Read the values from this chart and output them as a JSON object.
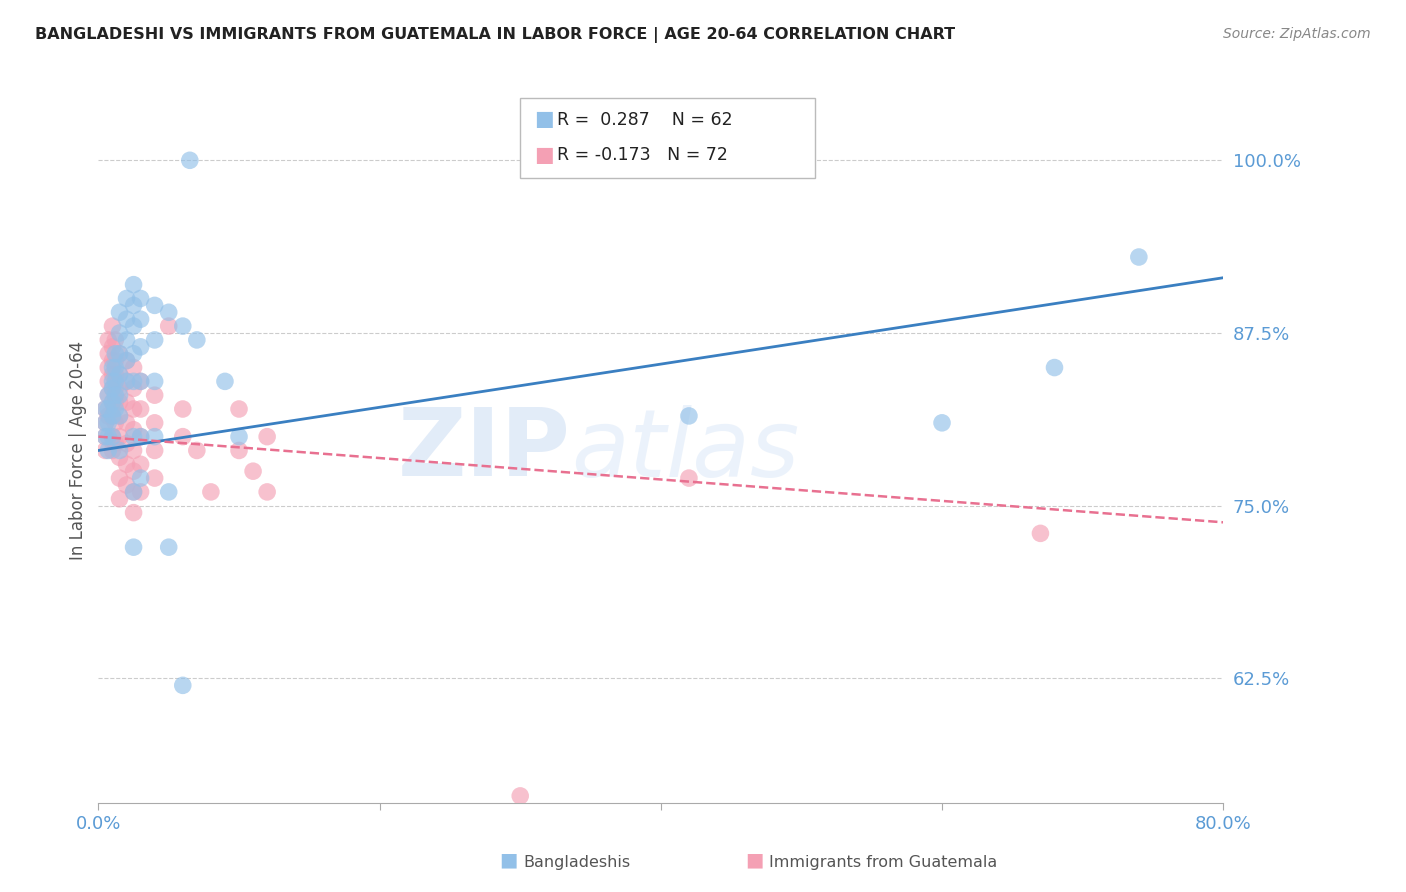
{
  "title": "BANGLADESHI VS IMMIGRANTS FROM GUATEMALA IN LABOR FORCE | AGE 20-64 CORRELATION CHART",
  "source": "Source: ZipAtlas.com",
  "ylabel": "In Labor Force | Age 20-64",
  "legend_label1": "Bangladeshis",
  "legend_label2": "Immigrants from Guatemala",
  "R1": 0.287,
  "N1": 62,
  "R2": -0.173,
  "N2": 72,
  "xlim": [
    0.0,
    0.8
  ],
  "ylim": [
    0.535,
    1.045
  ],
  "yticks": [
    0.625,
    0.75,
    0.875,
    1.0
  ],
  "ytick_labels": [
    "62.5%",
    "75.0%",
    "87.5%",
    "100.0%"
  ],
  "xticks": [
    0.0,
    0.2,
    0.4,
    0.6,
    0.8
  ],
  "xtick_labels": [
    "0.0%",
    "",
    "",
    "",
    "80.0%"
  ],
  "color_blue": "#92C0E8",
  "color_pink": "#F4A0B4",
  "line_color_blue": "#3A7FC1",
  "line_color_pink": "#E87090",
  "watermark_zip": "ZIP",
  "watermark_atlas": "atlas",
  "title_color": "#222222",
  "axis_label_color": "#555555",
  "tick_color": "#5B9BD5",
  "background_color": "#FFFFFF",
  "blue_scatter": [
    [
      0.005,
      0.82
    ],
    [
      0.005,
      0.81
    ],
    [
      0.005,
      0.8
    ],
    [
      0.007,
      0.83
    ],
    [
      0.007,
      0.82
    ],
    [
      0.007,
      0.81
    ],
    [
      0.007,
      0.8
    ],
    [
      0.007,
      0.79
    ],
    [
      0.01,
      0.85
    ],
    [
      0.01,
      0.84
    ],
    [
      0.01,
      0.835
    ],
    [
      0.01,
      0.825
    ],
    [
      0.01,
      0.815
    ],
    [
      0.01,
      0.8
    ],
    [
      0.012,
      0.86
    ],
    [
      0.012,
      0.85
    ],
    [
      0.012,
      0.84
    ],
    [
      0.012,
      0.83
    ],
    [
      0.012,
      0.82
    ],
    [
      0.015,
      0.89
    ],
    [
      0.015,
      0.875
    ],
    [
      0.015,
      0.86
    ],
    [
      0.015,
      0.845
    ],
    [
      0.015,
      0.83
    ],
    [
      0.015,
      0.815
    ],
    [
      0.015,
      0.79
    ],
    [
      0.02,
      0.9
    ],
    [
      0.02,
      0.885
    ],
    [
      0.02,
      0.87
    ],
    [
      0.02,
      0.855
    ],
    [
      0.02,
      0.84
    ],
    [
      0.025,
      0.91
    ],
    [
      0.025,
      0.895
    ],
    [
      0.025,
      0.88
    ],
    [
      0.025,
      0.86
    ],
    [
      0.025,
      0.84
    ],
    [
      0.025,
      0.8
    ],
    [
      0.025,
      0.76
    ],
    [
      0.025,
      0.72
    ],
    [
      0.03,
      0.9
    ],
    [
      0.03,
      0.885
    ],
    [
      0.03,
      0.865
    ],
    [
      0.03,
      0.84
    ],
    [
      0.03,
      0.8
    ],
    [
      0.03,
      0.77
    ],
    [
      0.04,
      0.895
    ],
    [
      0.04,
      0.87
    ],
    [
      0.04,
      0.84
    ],
    [
      0.04,
      0.8
    ],
    [
      0.05,
      0.89
    ],
    [
      0.06,
      0.88
    ],
    [
      0.07,
      0.87
    ],
    [
      0.05,
      0.76
    ],
    [
      0.05,
      0.72
    ],
    [
      0.06,
      0.62
    ],
    [
      0.065,
      1.0
    ],
    [
      0.09,
      0.84
    ],
    [
      0.1,
      0.8
    ],
    [
      0.42,
      0.815
    ],
    [
      0.6,
      0.81
    ],
    [
      0.68,
      0.85
    ],
    [
      0.74,
      0.93
    ]
  ],
  "pink_scatter": [
    [
      0.005,
      0.82
    ],
    [
      0.005,
      0.81
    ],
    [
      0.005,
      0.8
    ],
    [
      0.005,
      0.79
    ],
    [
      0.007,
      0.87
    ],
    [
      0.007,
      0.86
    ],
    [
      0.007,
      0.85
    ],
    [
      0.007,
      0.84
    ],
    [
      0.007,
      0.83
    ],
    [
      0.007,
      0.815
    ],
    [
      0.01,
      0.88
    ],
    [
      0.01,
      0.865
    ],
    [
      0.01,
      0.855
    ],
    [
      0.01,
      0.845
    ],
    [
      0.01,
      0.835
    ],
    [
      0.01,
      0.825
    ],
    [
      0.01,
      0.815
    ],
    [
      0.01,
      0.8
    ],
    [
      0.01,
      0.79
    ],
    [
      0.012,
      0.87
    ],
    [
      0.012,
      0.855
    ],
    [
      0.012,
      0.845
    ],
    [
      0.012,
      0.835
    ],
    [
      0.012,
      0.825
    ],
    [
      0.012,
      0.81
    ],
    [
      0.012,
      0.795
    ],
    [
      0.015,
      0.86
    ],
    [
      0.015,
      0.845
    ],
    [
      0.015,
      0.835
    ],
    [
      0.015,
      0.825
    ],
    [
      0.015,
      0.815
    ],
    [
      0.015,
      0.8
    ],
    [
      0.015,
      0.785
    ],
    [
      0.015,
      0.77
    ],
    [
      0.015,
      0.755
    ],
    [
      0.02,
      0.855
    ],
    [
      0.02,
      0.84
    ],
    [
      0.02,
      0.825
    ],
    [
      0.02,
      0.81
    ],
    [
      0.02,
      0.795
    ],
    [
      0.02,
      0.78
    ],
    [
      0.02,
      0.765
    ],
    [
      0.025,
      0.85
    ],
    [
      0.025,
      0.835
    ],
    [
      0.025,
      0.82
    ],
    [
      0.025,
      0.805
    ],
    [
      0.025,
      0.79
    ],
    [
      0.025,
      0.775
    ],
    [
      0.025,
      0.76
    ],
    [
      0.025,
      0.745
    ],
    [
      0.03,
      0.84
    ],
    [
      0.03,
      0.82
    ],
    [
      0.03,
      0.8
    ],
    [
      0.03,
      0.78
    ],
    [
      0.03,
      0.76
    ],
    [
      0.04,
      0.83
    ],
    [
      0.04,
      0.81
    ],
    [
      0.04,
      0.79
    ],
    [
      0.04,
      0.77
    ],
    [
      0.05,
      0.88
    ],
    [
      0.06,
      0.82
    ],
    [
      0.06,
      0.8
    ],
    [
      0.07,
      0.79
    ],
    [
      0.08,
      0.76
    ],
    [
      0.1,
      0.82
    ],
    [
      0.1,
      0.79
    ],
    [
      0.11,
      0.775
    ],
    [
      0.12,
      0.8
    ],
    [
      0.12,
      0.76
    ],
    [
      0.3,
      0.54
    ],
    [
      0.42,
      0.77
    ],
    [
      0.67,
      0.73
    ]
  ],
  "blue_line_x": [
    0.0,
    0.8
  ],
  "blue_line_y": [
    0.79,
    0.915
  ],
  "pink_line_x": [
    0.0,
    0.8
  ],
  "pink_line_y": [
    0.8,
    0.738
  ]
}
